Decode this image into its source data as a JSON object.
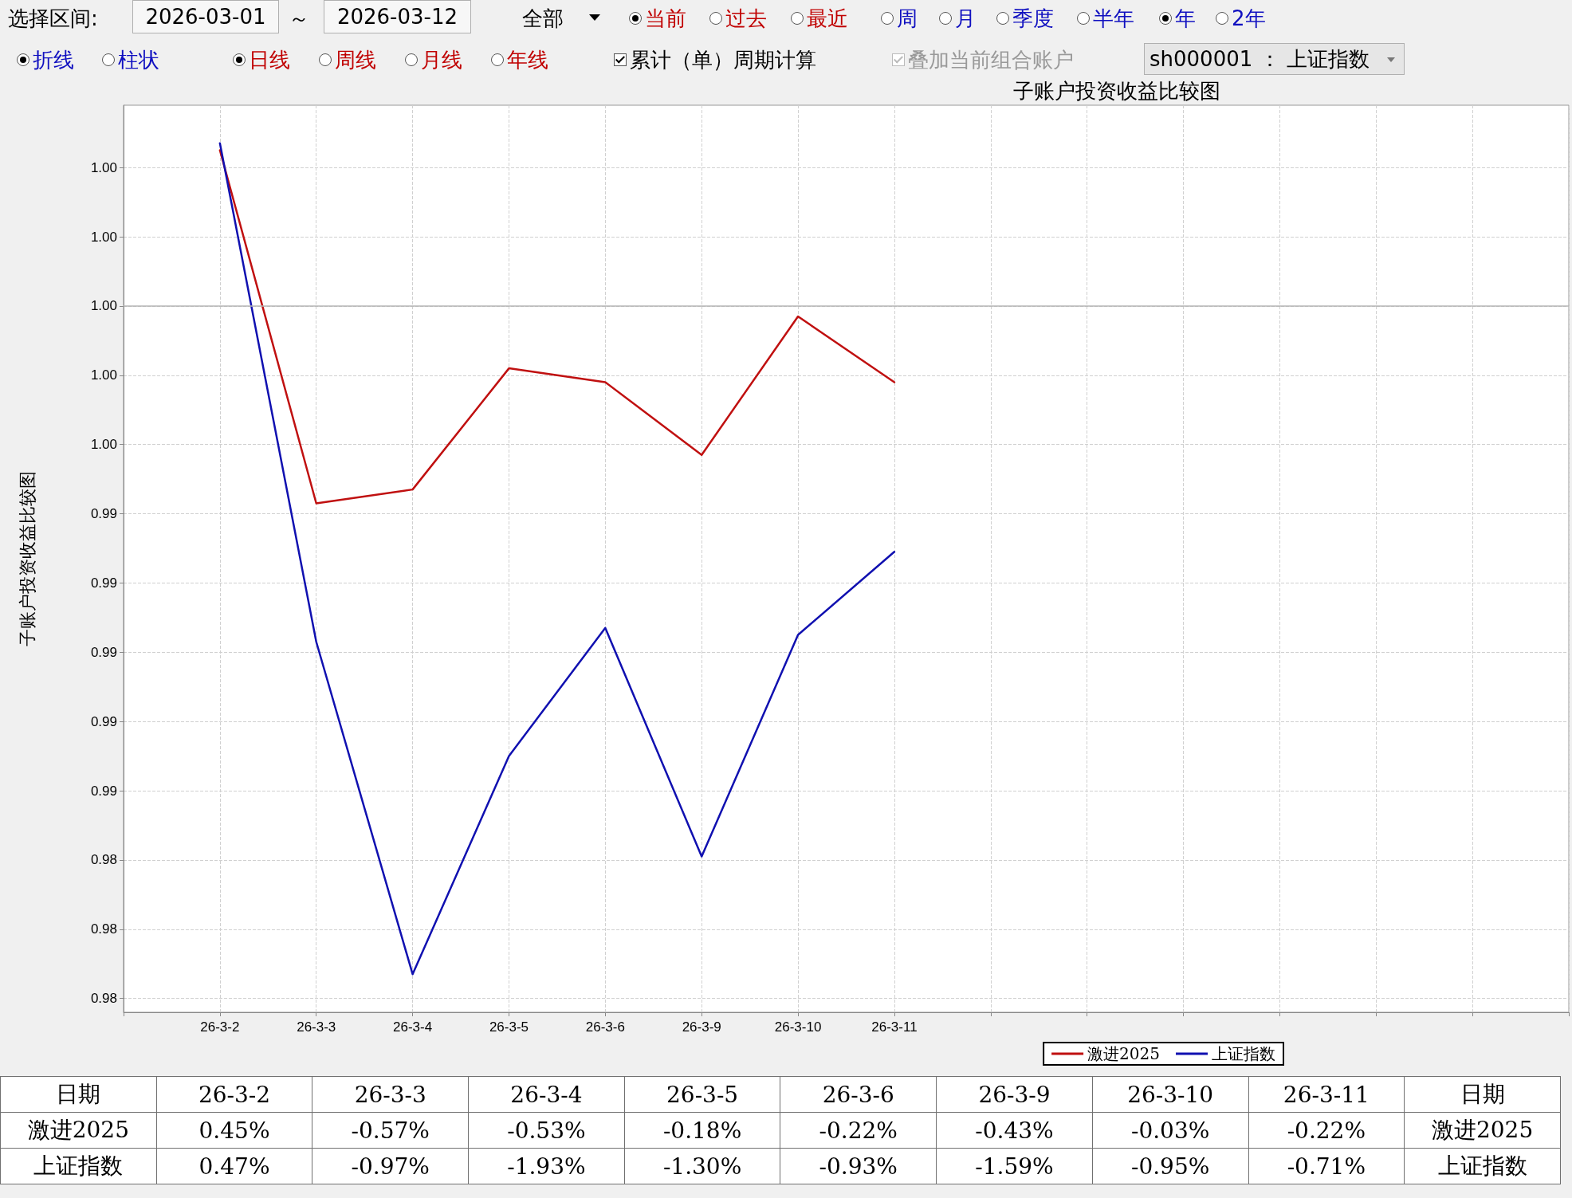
{
  "chart_data": [
    {
      "type": "line",
      "title": "子账户投资收益比较图",
      "ylabel": "子账户投资收益比较图",
      "categories": [
        null,
        "26-3-2",
        "26-3-3",
        "26-3-4",
        "26-3-5",
        "26-3-6",
        "26-3-9",
        "26-3-10",
        "26-3-11",
        null,
        null,
        null,
        null,
        null,
        null,
        null
      ],
      "series": [
        {
          "name": "激进2025",
          "color": "#c01010",
          "values": [
            null,
            1.0045,
            0.9943,
            0.9947,
            0.9982,
            0.9978,
            0.9957,
            0.9997,
            0.9978,
            null,
            null,
            null,
            null,
            null,
            null,
            null
          ]
        },
        {
          "name": "上证指数",
          "color": "#1010b0",
          "values": [
            null,
            1.0047,
            0.9903,
            0.9807,
            0.987,
            0.9907,
            0.9841,
            0.9905,
            0.9929,
            null,
            null,
            null,
            null,
            null,
            null,
            null
          ]
        }
      ],
      "ylim": [
        0.9796,
        1.0058
      ],
      "yticks": [
        {
          "value": 0.98,
          "label": "0.98"
        },
        {
          "value": 0.982,
          "label": "0.98"
        },
        {
          "value": 0.984,
          "label": "0.98"
        },
        {
          "value": 0.986,
          "label": "0.99"
        },
        {
          "value": 0.988,
          "label": "0.99"
        },
        {
          "value": 0.99,
          "label": "0.99"
        },
        {
          "value": 0.992,
          "label": "0.99"
        },
        {
          "value": 0.994,
          "label": "0.99"
        },
        {
          "value": 0.996,
          "label": "1.00"
        },
        {
          "value": 0.998,
          "label": "1.00"
        },
        {
          "value": 1.0,
          "label": "1.00"
        },
        {
          "value": 1.002,
          "label": "1.00"
        },
        {
          "value": 1.004,
          "label": "1.00"
        }
      ],
      "ref_lines": [
        {
          "axis": "y",
          "value": 1.0,
          "color": "#b4b4b4"
        }
      ],
      "grid": true,
      "legend": "bottom right",
      "marker": "none",
      "line_style": "solid",
      "annotations": [
        "选择区间:",
        "2026-03-01",
        "～",
        "2026-03-12",
        "全部",
        "当前",
        "过去",
        "最近",
        "周",
        "月",
        "季度",
        "半年",
        "年",
        "2年",
        "折线",
        "柱状",
        "日线",
        "周线",
        "月线",
        "年线",
        "累计（单）周期计算",
        "叠加当前组合账户",
        "sh000001 ： 上证指数"
      ]
    },
    {
      "type": "other",
      "annotations": [
        "日期",
        "26-3-2",
        "26-3-3",
        "26-3-4",
        "26-3-5",
        "26-3-6",
        "26-3-9",
        "26-3-10",
        "26-3-11",
        "日期",
        "激进2025",
        "0.45%",
        "-0.57%",
        "-0.53%",
        "-0.18%",
        "-0.22%",
        "-0.43%",
        "-0.03%",
        "-0.22%",
        "激进2025",
        "上证指数",
        "0.47%",
        "-0.97%",
        "-1.93%",
        "-1.30%",
        "-0.93%",
        "-1.59%",
        "-0.95%",
        "-0.71%",
        "上证指数"
      ]
    }
  ]
}
